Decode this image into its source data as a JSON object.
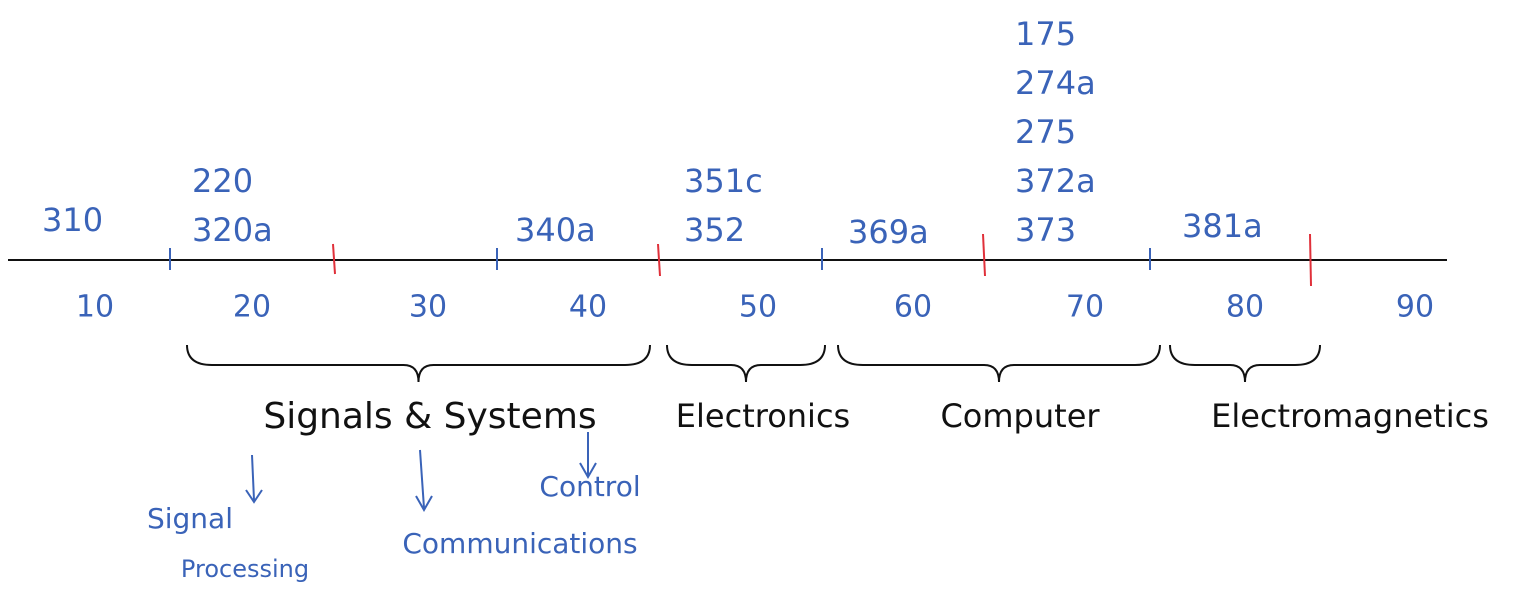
{
  "axis": {
    "labels": [
      "10",
      "20",
      "30",
      "40",
      "50",
      "60",
      "70",
      "80",
      "90"
    ]
  },
  "courses": [
    {
      "items": [
        "310"
      ]
    },
    {
      "items": [
        "220",
        "320a"
      ]
    },
    {
      "items": [
        "340a"
      ]
    },
    {
      "items": [
        "351c",
        "352"
      ]
    },
    {
      "items": [
        "369a"
      ]
    },
    {
      "items": [
        "175",
        "274a",
        "275",
        "372a",
        "373"
      ]
    },
    {
      "items": [
        "381a"
      ]
    }
  ],
  "groups": [
    {
      "label": "Signals & Systems",
      "subtopics": [
        {
          "lines": [
            "Signal",
            "Processing"
          ]
        },
        {
          "lines": [
            "Communications"
          ]
        },
        {
          "lines": [
            "Control"
          ]
        }
      ]
    },
    {
      "label": "Electronics"
    },
    {
      "label": "Computer"
    },
    {
      "label": "Electromagnetics"
    }
  ]
}
